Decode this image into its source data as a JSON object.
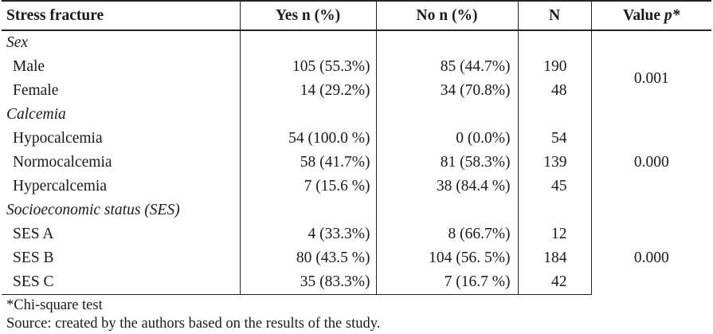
{
  "table": {
    "headers": {
      "label": "Stress fracture",
      "yes": "Yes n (%)",
      "no": "No n (%)",
      "n": "N",
      "p_value_text": "Value ",
      "p_value_symbol": "p*"
    },
    "groups": [
      {
        "label": "Sex",
        "p_value": "0.001",
        "rows": [
          {
            "label": "Male",
            "yes": "105 (55.3%)",
            "no": "85 (44.7%)",
            "n": "190"
          },
          {
            "label": "Female",
            "yes": "14 (29.2%)",
            "no": "34 (70.8%)",
            "n": "48"
          }
        ]
      },
      {
        "label": "Calcemia",
        "p_value": "0.000",
        "rows": [
          {
            "label": "Hypocalcemia",
            "yes": "54 (100.0 %)",
            "no": "0 (0.0%)",
            "n": "54"
          },
          {
            "label": "Normocalcemia",
            "yes": "58 (41.7%)",
            "no": "81 (58.3%)",
            "n": "139"
          },
          {
            "label": "Hypercalcemia",
            "yes": "7 (15.6 %)",
            "no": "38 (84.4 %)",
            "n": "45"
          }
        ]
      },
      {
        "label": "Socioeconomic status (SES)",
        "p_value": "0.000",
        "rows": [
          {
            "label": "SES A",
            "yes": "4 (33.3%)",
            "no": "8 (66.7%)",
            "n": "12"
          },
          {
            "label": "SES B",
            "yes": "80 (43.5 %)",
            "no": "104 (56. 5%)",
            "n": "184"
          },
          {
            "label": "SES C",
            "yes": "35 (83.3%)",
            "no": "7 (16.7 %)",
            "n": "42"
          }
        ]
      }
    ]
  },
  "notes": {
    "test": "*Chi-square test",
    "source": "Source: created by the authors based on the results of the study."
  }
}
